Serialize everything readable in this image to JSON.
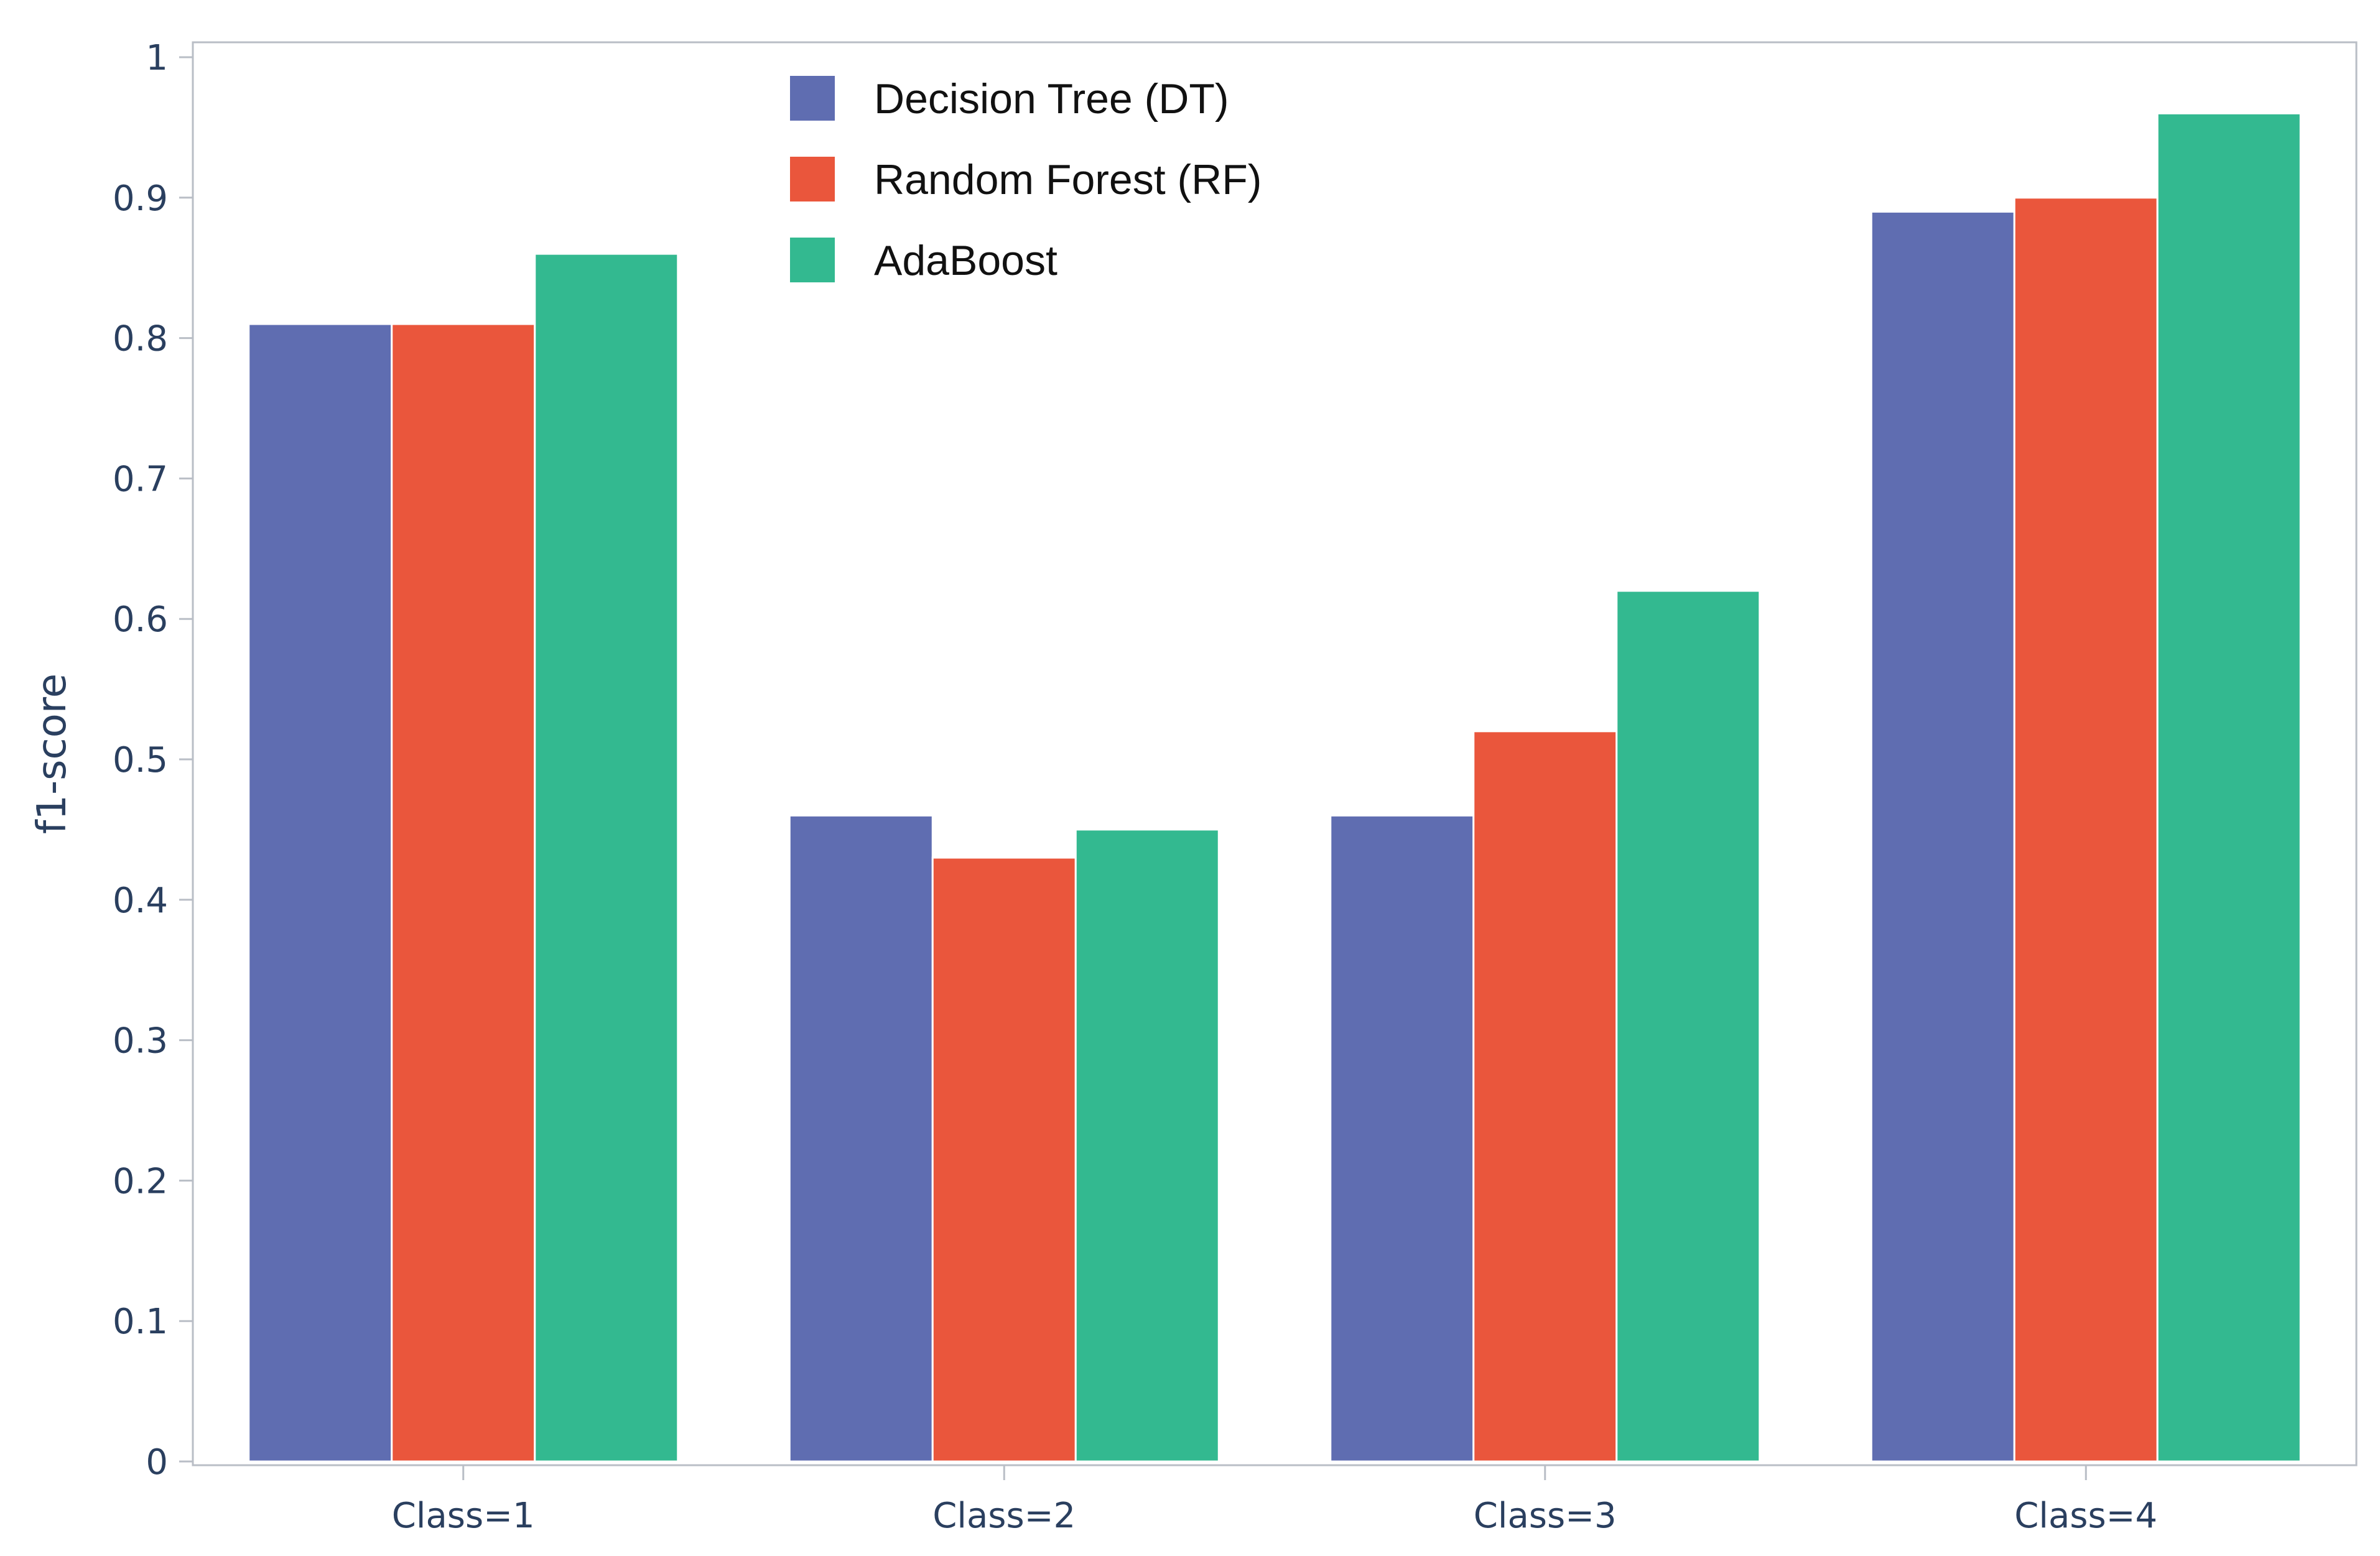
{
  "chart_data": {
    "type": "bar",
    "title": "",
    "xlabel": "",
    "ylabel": "f1-score",
    "ylim": [
      0,
      1
    ],
    "yticks": [
      0,
      0.1,
      0.2,
      0.3,
      0.4,
      0.5,
      0.6,
      0.7,
      0.8,
      0.9,
      1
    ],
    "ytick_labels": [
      "0",
      "0.1",
      "0.2",
      "0.3",
      "0.4",
      "0.5",
      "0.6",
      "0.7",
      "0.8",
      "0.9",
      "1"
    ],
    "categories": [
      "Class=1",
      "Class=2",
      "Class=3",
      "Class=4"
    ],
    "grid": false,
    "legend_position": "top-center",
    "series": [
      {
        "name": "Decision Tree (DT)",
        "color": "#5f6db1",
        "values": [
          0.81,
          0.46,
          0.46,
          0.89
        ]
      },
      {
        "name": "Random Forest (RF)",
        "color": "#ea563c",
        "values": [
          0.81,
          0.43,
          0.52,
          0.9
        ]
      },
      {
        "name": "AdaBoost",
        "color": "#33b990",
        "values": [
          0.86,
          0.45,
          0.62,
          0.96
        ]
      }
    ]
  }
}
